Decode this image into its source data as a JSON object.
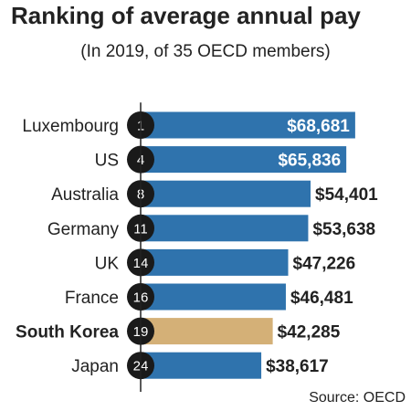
{
  "chart_data": {
    "type": "bar",
    "orientation": "horizontal",
    "title": "Ranking of average annual pay",
    "subtitle": "(In 2019, of 35 OECD members)",
    "source": "Source: OECD",
    "categories": [
      "Luxembourg",
      "US",
      "Australia",
      "Germany",
      "UK",
      "France",
      "South Korea",
      "Japan"
    ],
    "ranks": [
      "1",
      "4",
      "8",
      "11",
      "14",
      "16",
      "19",
      "24"
    ],
    "values": [
      68681,
      65836,
      54401,
      53638,
      47226,
      46481,
      42285,
      38617
    ],
    "value_labels": [
      "$68,681",
      "$65,836",
      "$54,401",
      "$53,638",
      "$47,226",
      "$46,481",
      "$42,285",
      "$38,617"
    ],
    "value_label_inside": [
      true,
      true,
      false,
      false,
      false,
      false,
      false,
      false
    ],
    "highlight": "South Korea",
    "colors": {
      "bar": "#2f73ad",
      "highlight_bar": "#d4b077",
      "rank_circle": "#1a1a1a",
      "axis": "#222222",
      "text": "#222222"
    }
  }
}
